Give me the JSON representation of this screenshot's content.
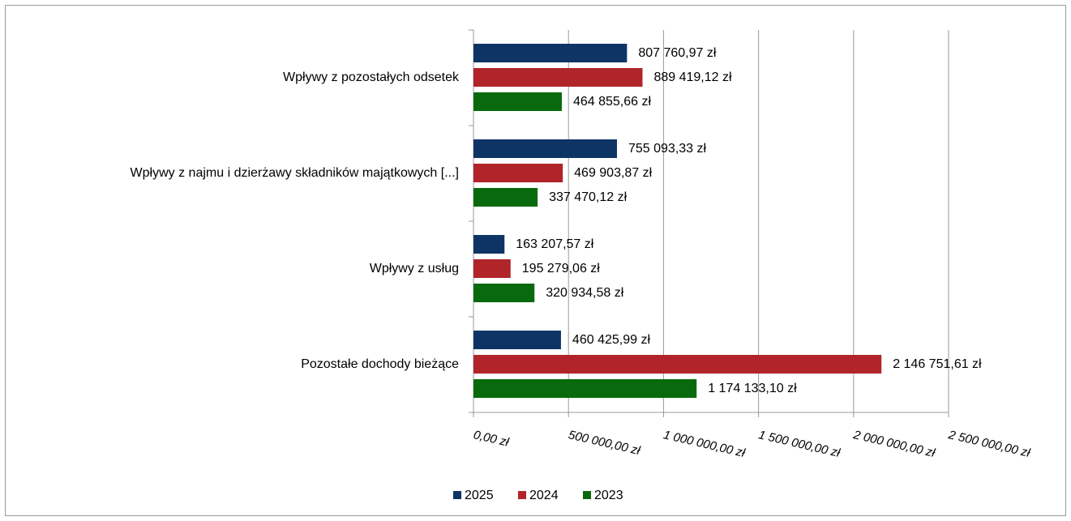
{
  "chart_data": {
    "type": "hbar",
    "categories": [
      "Wpływy z pozostałych odsetek",
      "Wpływy z najmu i dzierżawy składników majątkowych [...]",
      "Wpływy z usług",
      "Pozostałe dochody bieżące"
    ],
    "series": [
      {
        "name": "2025",
        "color": "#0e3465",
        "values": [
          807760.97,
          755093.33,
          163207.57,
          460425.99
        ],
        "value_labels": [
          "807 760,97 zł",
          "755 093,33 zł",
          "163 207,57 zł",
          "460 425,99 zł"
        ]
      },
      {
        "name": "2024",
        "color": "#b0242a",
        "values": [
          889419.12,
          469903.87,
          195279.06,
          2146751.61
        ],
        "value_labels": [
          "889 419,12 zł",
          "469 903,87 zł",
          "195 279,06 zł",
          "2 146 751,61 zł"
        ]
      },
      {
        "name": "2023",
        "color": "#086a0d",
        "values": [
          464855.66,
          337470.12,
          320934.58,
          1174133.1
        ],
        "value_labels": [
          "464 855,66 zł",
          "337 470,12 zł",
          "320 934,58 zł",
          "1 174 133,10 zł"
        ]
      }
    ],
    "xlim": [
      0,
      2500000
    ],
    "xticks": [
      {
        "value": 0,
        "label": "0,00 zł"
      },
      {
        "value": 500000,
        "label": "500 000,00 zł"
      },
      {
        "value": 1000000,
        "label": "1 000 000,00 zł"
      },
      {
        "value": 1500000,
        "label": "1 500 000,00 zł"
      },
      {
        "value": 2000000,
        "label": "2 000 000,00 zł"
      },
      {
        "value": 2500000,
        "label": "2 500 000,00 zł"
      }
    ],
    "grid": true,
    "legend": "bottom"
  }
}
